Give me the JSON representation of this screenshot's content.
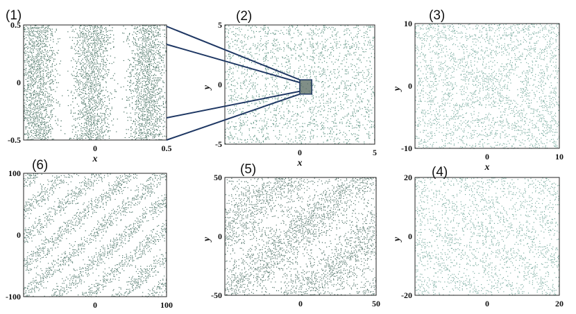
{
  "chart_data": [
    {
      "type": "scatter",
      "panel_label": "(1)",
      "xlim": [
        -0.5,
        0.5
      ],
      "ylim": [
        -0.5,
        0.5
      ],
      "xticks": [
        "0",
        "0.5"
      ],
      "yticks": [
        "0.5",
        "0",
        "-0.5"
      ],
      "xlabel": "x",
      "ylabel": "",
      "pattern": "vertical-stripes",
      "color": "#2f5e4e",
      "density": 0.72
    },
    {
      "type": "scatter",
      "panel_label": "(2)",
      "xlim": [
        -5,
        5
      ],
      "ylim": [
        -5,
        5
      ],
      "xticks": [
        "0",
        "5"
      ],
      "yticks": [
        "5",
        "0",
        "-5"
      ],
      "xlabel": "x",
      "ylabel": "y",
      "pattern": "lattice",
      "color": "#4f8a78",
      "density": 0.5,
      "zoom_region": {
        "x": [
          0,
          0.8
        ],
        "y": [
          -0.8,
          0.4
        ]
      }
    },
    {
      "type": "scatter",
      "panel_label": "(3)",
      "xlim": [
        -10,
        10
      ],
      "ylim": [
        -10,
        10
      ],
      "xticks": [
        "0",
        "10"
      ],
      "yticks": [
        "10",
        "0",
        "-10"
      ],
      "xlabel": "x",
      "ylabel": "y",
      "pattern": "hyperbolic",
      "color": "#6ea598",
      "density": 0.42
    },
    {
      "type": "scatter",
      "panel_label": "(4)",
      "xlim": [
        -20,
        20
      ],
      "ylim": [
        -20,
        20
      ],
      "xticks": [
        "0",
        "20"
      ],
      "yticks": [
        "20",
        "0",
        "-20"
      ],
      "xlabel": "",
      "ylabel": "y",
      "pattern": "diagonal-faint",
      "color": "#6ea598",
      "density": 0.34
    },
    {
      "type": "scatter",
      "panel_label": "(5)",
      "xlim": [
        -50,
        50
      ],
      "ylim": [
        -50,
        50
      ],
      "xticks": [
        "0",
        "50"
      ],
      "yticks": [
        "50",
        "0",
        "-50"
      ],
      "xlabel": "",
      "ylabel": "y",
      "pattern": "diagonal-wide",
      "color": "#42675c",
      "density": 0.5
    },
    {
      "type": "scatter",
      "panel_label": "(6)",
      "xlim": [
        -100,
        100
      ],
      "ylim": [
        -100,
        100
      ],
      "xticks": [
        "0",
        "100"
      ],
      "yticks": [
        "100",
        "0",
        "-100"
      ],
      "xlabel": "",
      "ylabel": "",
      "pattern": "diagonal-stripes",
      "color": "#3f6a5e",
      "density": 0.55
    }
  ]
}
